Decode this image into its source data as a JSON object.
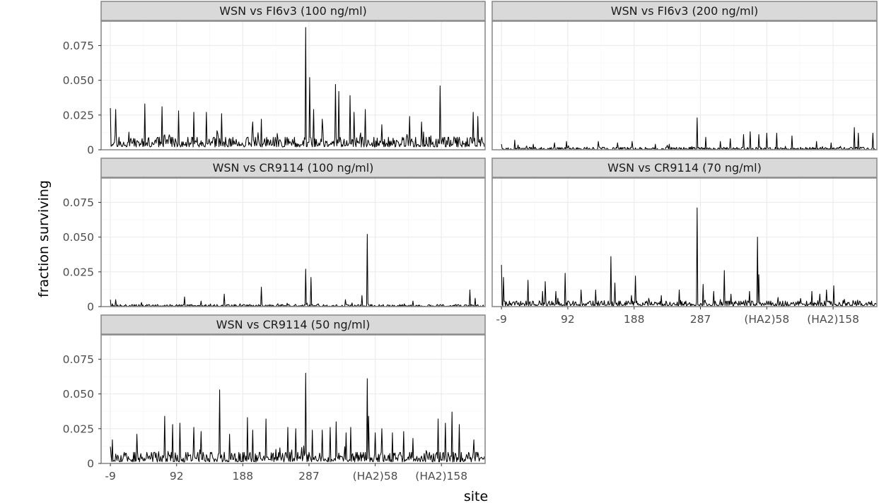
{
  "chart_data": {
    "type": "line",
    "xlabel": "site",
    "ylabel": "fraction surviving",
    "grid": true,
    "facet_layout": "2 columns, 3 rows (last row has one panel)",
    "xlim": [
      -14,
      566
    ],
    "ylim": [
      0,
      0.0925
    ],
    "x_tick_values": [
      0,
      100,
      200,
      300,
      400,
      500
    ],
    "x_tick_labels": [
      "-9",
      "92",
      "188",
      "287",
      "(HA2)58",
      "(HA2)158"
    ],
    "y_tick_values": [
      0,
      0.025,
      0.05,
      0.075
    ],
    "y_tick_labels": [
      "0",
      "0.025",
      "0.050",
      "0.075"
    ],
    "x_note": "x values are sequential site indices 0-565 in plotting order; the tick labels give the printed site numbering",
    "panels": [
      {
        "strip": "WSN vs FI6v3 (100 ng/ml)",
        "baseline": [
          0.002,
          0.009
        ],
        "seed": 11,
        "peaks": [
          [
            0,
            0.03
          ],
          [
            8,
            0.029
          ],
          [
            52,
            0.033
          ],
          [
            78,
            0.031
          ],
          [
            103,
            0.028
          ],
          [
            126,
            0.027
          ],
          [
            145,
            0.027
          ],
          [
            168,
            0.026
          ],
          [
            228,
            0.022
          ],
          [
            295,
            0.088
          ],
          [
            301,
            0.052
          ],
          [
            307,
            0.029
          ],
          [
            340,
            0.047
          ],
          [
            345,
            0.042
          ],
          [
            362,
            0.039
          ],
          [
            368,
            0.027
          ],
          [
            385,
            0.029
          ],
          [
            452,
            0.024
          ],
          [
            498,
            0.046
          ],
          [
            548,
            0.027
          ],
          [
            555,
            0.024
          ],
          [
            215,
            0.02
          ],
          [
            320,
            0.022
          ],
          [
            410,
            0.018
          ],
          [
            470,
            0.02
          ]
        ]
      },
      {
        "strip": "WSN vs FI6v3 (200 ng/ml)",
        "baseline": [
          0.0,
          0.0018
        ],
        "seed": 23,
        "peaks": [
          [
            0,
            0.004
          ],
          [
            20,
            0.007
          ],
          [
            48,
            0.004
          ],
          [
            80,
            0.005
          ],
          [
            98,
            0.006
          ],
          [
            146,
            0.006
          ],
          [
            175,
            0.005
          ],
          [
            197,
            0.006
          ],
          [
            232,
            0.004
          ],
          [
            253,
            0.004
          ],
          [
            295,
            0.023
          ],
          [
            308,
            0.009
          ],
          [
            330,
            0.006
          ],
          [
            345,
            0.008
          ],
          [
            365,
            0.011
          ],
          [
            375,
            0.013
          ],
          [
            388,
            0.011
          ],
          [
            400,
            0.012
          ],
          [
            415,
            0.012
          ],
          [
            438,
            0.01
          ],
          [
            475,
            0.006
          ],
          [
            497,
            0.005
          ],
          [
            532,
            0.016
          ],
          [
            538,
            0.012
          ],
          [
            560,
            0.012
          ]
        ]
      },
      {
        "strip": "WSN vs CR9114 (100 ng/ml)",
        "baseline": [
          0.0,
          0.0015
        ],
        "seed": 37,
        "peaks": [
          [
            0,
            0.005
          ],
          [
            8,
            0.005
          ],
          [
            47,
            0.003
          ],
          [
            112,
            0.007
          ],
          [
            137,
            0.004
          ],
          [
            172,
            0.009
          ],
          [
            228,
            0.014
          ],
          [
            295,
            0.027
          ],
          [
            303,
            0.021
          ],
          [
            355,
            0.005
          ],
          [
            380,
            0.008
          ],
          [
            388,
            0.052
          ],
          [
            457,
            0.004
          ],
          [
            543,
            0.012
          ],
          [
            551,
            0.006
          ]
        ]
      },
      {
        "strip": "WSN vs CR9114 (70 ng/ml)",
        "baseline": [
          0.0005,
          0.004
        ],
        "seed": 41,
        "peaks": [
          [
            0,
            0.03
          ],
          [
            3,
            0.021
          ],
          [
            40,
            0.019
          ],
          [
            62,
            0.011
          ],
          [
            66,
            0.018
          ],
          [
            82,
            0.011
          ],
          [
            96,
            0.024
          ],
          [
            120,
            0.012
          ],
          [
            142,
            0.012
          ],
          [
            165,
            0.036
          ],
          [
            171,
            0.017
          ],
          [
            196,
            0.008
          ],
          [
            202,
            0.022
          ],
          [
            241,
            0.008
          ],
          [
            268,
            0.012
          ],
          [
            295,
            0.071
          ],
          [
            304,
            0.016
          ],
          [
            320,
            0.011
          ],
          [
            336,
            0.026
          ],
          [
            346,
            0.009
          ],
          [
            374,
            0.011
          ],
          [
            386,
            0.05
          ],
          [
            388,
            0.023
          ],
          [
            468,
            0.011
          ],
          [
            480,
            0.009
          ],
          [
            490,
            0.012
          ],
          [
            501,
            0.015
          ],
          [
            540,
            0.004
          ]
        ]
      },
      {
        "strip": "WSN vs CR9114 (50 ng/ml)",
        "baseline": [
          0.001,
          0.008
        ],
        "seed": 53,
        "peaks": [
          [
            0,
            0.012
          ],
          [
            3,
            0.017
          ],
          [
            40,
            0.021
          ],
          [
            82,
            0.034
          ],
          [
            94,
            0.028
          ],
          [
            105,
            0.029
          ],
          [
            126,
            0.026
          ],
          [
            137,
            0.023
          ],
          [
            165,
            0.053
          ],
          [
            180,
            0.021
          ],
          [
            207,
            0.033
          ],
          [
            215,
            0.024
          ],
          [
            235,
            0.032
          ],
          [
            268,
            0.026
          ],
          [
            280,
            0.025
          ],
          [
            295,
            0.065
          ],
          [
            305,
            0.024
          ],
          [
            320,
            0.024
          ],
          [
            332,
            0.026
          ],
          [
            341,
            0.03
          ],
          [
            356,
            0.022
          ],
          [
            363,
            0.026
          ],
          [
            388,
            0.061
          ],
          [
            390,
            0.034
          ],
          [
            400,
            0.022
          ],
          [
            410,
            0.025
          ],
          [
            426,
            0.022
          ],
          [
            443,
            0.023
          ],
          [
            457,
            0.018
          ],
          [
            495,
            0.032
          ],
          [
            506,
            0.029
          ],
          [
            516,
            0.037
          ],
          [
            527,
            0.028
          ],
          [
            549,
            0.017
          ]
        ]
      }
    ]
  }
}
